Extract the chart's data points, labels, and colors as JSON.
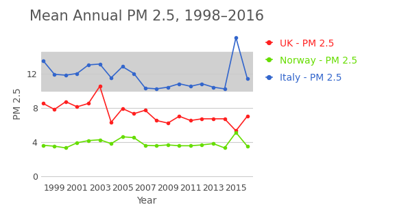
{
  "title": "Mean Annual PM 2.5, 1998–2016",
  "xlabel": "Year",
  "ylabel": "PM 2.5",
  "years": [
    1998,
    1999,
    2000,
    2001,
    2002,
    2003,
    2004,
    2005,
    2006,
    2007,
    2008,
    2009,
    2010,
    2011,
    2012,
    2013,
    2014,
    2015,
    2016
  ],
  "uk": [
    8.5,
    7.8,
    8.7,
    8.1,
    8.5,
    10.5,
    6.3,
    7.9,
    7.3,
    7.7,
    6.5,
    6.2,
    7.0,
    6.5,
    6.7,
    6.7,
    6.7,
    5.3,
    7.0
  ],
  "norway": [
    3.6,
    3.5,
    3.3,
    3.9,
    4.15,
    4.25,
    3.8,
    4.6,
    4.5,
    3.6,
    3.55,
    3.65,
    3.55,
    3.55,
    3.65,
    3.8,
    3.3,
    5.1,
    3.5
  ],
  "italy": [
    13.5,
    11.9,
    11.8,
    12.0,
    13.0,
    13.1,
    11.5,
    12.8,
    12.0,
    10.3,
    10.2,
    10.4,
    10.8,
    10.5,
    10.8,
    10.4,
    10.2,
    16.2,
    11.4
  ],
  "uk_color": "#ff2020",
  "norway_color": "#66dd00",
  "italy_color": "#3366cc",
  "shading_ymin": 10.0,
  "shading_ymax": 14.5,
  "ylim": [
    -0.5,
    17.5
  ],
  "yticks": [
    0,
    4,
    8,
    12
  ],
  "xticks": [
    1999,
    2001,
    2003,
    2005,
    2007,
    2009,
    2011,
    2013,
    2015
  ],
  "title_color": "#555555",
  "title_fontsize": 15,
  "axis_label_fontsize": 10,
  "tick_fontsize": 9,
  "legend_fontsize": 10,
  "background_color": "#ffffff",
  "grid_color": "#cccccc",
  "shading_color": "#d0d0d0"
}
